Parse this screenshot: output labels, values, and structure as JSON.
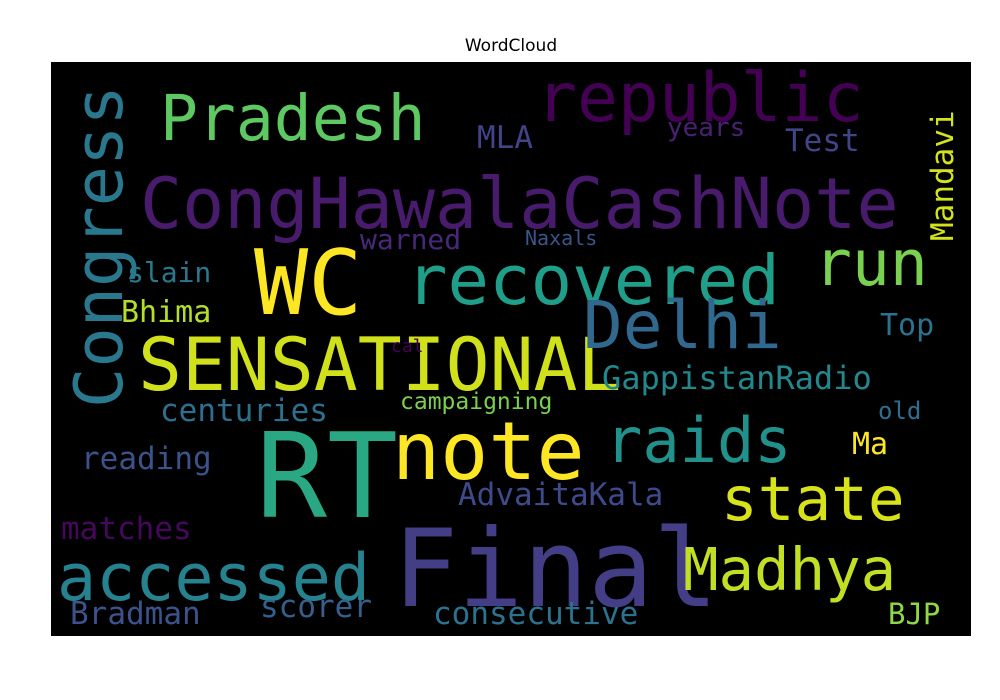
{
  "chart_data": {
    "type": "wordcloud",
    "title": "WordCloud",
    "background": "#000000",
    "colormap": "viridis",
    "words": [
      {
        "text": "RT",
        "weight": 1.0,
        "color": "#29a883"
      },
      {
        "text": "Final",
        "weight": 0.96,
        "color": "#433e85"
      },
      {
        "text": "WC",
        "weight": 0.82,
        "color": "#fde725"
      },
      {
        "text": "note",
        "weight": 0.72,
        "color": "#fde725"
      },
      {
        "text": "SENSATIONAL",
        "weight": 0.7,
        "color": "#d0e11c"
      },
      {
        "text": "CongHawalaCashNote",
        "weight": 0.66,
        "color": "#481b6d"
      },
      {
        "text": "recovered",
        "weight": 0.64,
        "color": "#1f9e89"
      },
      {
        "text": "republic",
        "weight": 0.62,
        "color": "#440154"
      },
      {
        "text": "Congress",
        "weight": 0.62,
        "color": "#2a788e"
      },
      {
        "text": "Delhi",
        "weight": 0.61,
        "color": "#31688e"
      },
      {
        "text": "accessed",
        "weight": 0.6,
        "color": "#26828e"
      },
      {
        "text": "Pradesh",
        "weight": 0.58,
        "color": "#5ec962"
      },
      {
        "text": "run",
        "weight": 0.58,
        "color": "#7ad151"
      },
      {
        "text": "raids",
        "weight": 0.57,
        "color": "#21918c"
      },
      {
        "text": "state",
        "weight": 0.56,
        "color": "#d8e219"
      },
      {
        "text": "Madhya",
        "weight": 0.55,
        "color": "#c2df23"
      },
      {
        "text": "GappistanRadio",
        "weight": 0.3,
        "color": "#23888e"
      },
      {
        "text": "AdvaitaKala",
        "weight": 0.29,
        "color": "#3e4a89"
      },
      {
        "text": "consecutive",
        "weight": 0.29,
        "color": "#2c728e"
      },
      {
        "text": "Bradman",
        "weight": 0.29,
        "color": "#3b528b"
      },
      {
        "text": "scorer",
        "weight": 0.29,
        "color": "#355f8d"
      },
      {
        "text": "centuries",
        "weight": 0.29,
        "color": "#2d708e"
      },
      {
        "text": "matches",
        "weight": 0.29,
        "color": "#46085c"
      },
      {
        "text": "reading",
        "weight": 0.29,
        "color": "#3b528b"
      },
      {
        "text": "Mandavi",
        "weight": 0.29,
        "color": "#d2e21b"
      },
      {
        "text": "Test",
        "weight": 0.29,
        "color": "#414487"
      },
      {
        "text": "MLA",
        "weight": 0.29,
        "color": "#414487"
      },
      {
        "text": "Bhima",
        "weight": 0.28,
        "color": "#b5de2b"
      },
      {
        "text": "Top",
        "weight": 0.28,
        "color": "#2c728e"
      },
      {
        "text": "Ma",
        "weight": 0.28,
        "color": "#fde725"
      },
      {
        "text": "BJP",
        "weight": 0.27,
        "color": "#8fd744"
      },
      {
        "text": "slain",
        "weight": 0.26,
        "color": "#2a788e"
      },
      {
        "text": "warned",
        "weight": 0.26,
        "color": "#482878"
      },
      {
        "text": "years",
        "weight": 0.24,
        "color": "#482173"
      },
      {
        "text": "old",
        "weight": 0.22,
        "color": "#2e6e8e"
      },
      {
        "text": "campaigning",
        "weight": 0.21,
        "color": "#7ad151"
      },
      {
        "text": "Naxals",
        "weight": 0.18,
        "color": "#39568c"
      },
      {
        "text": "cal",
        "weight": 0.17,
        "color": "#440154"
      }
    ]
  }
}
